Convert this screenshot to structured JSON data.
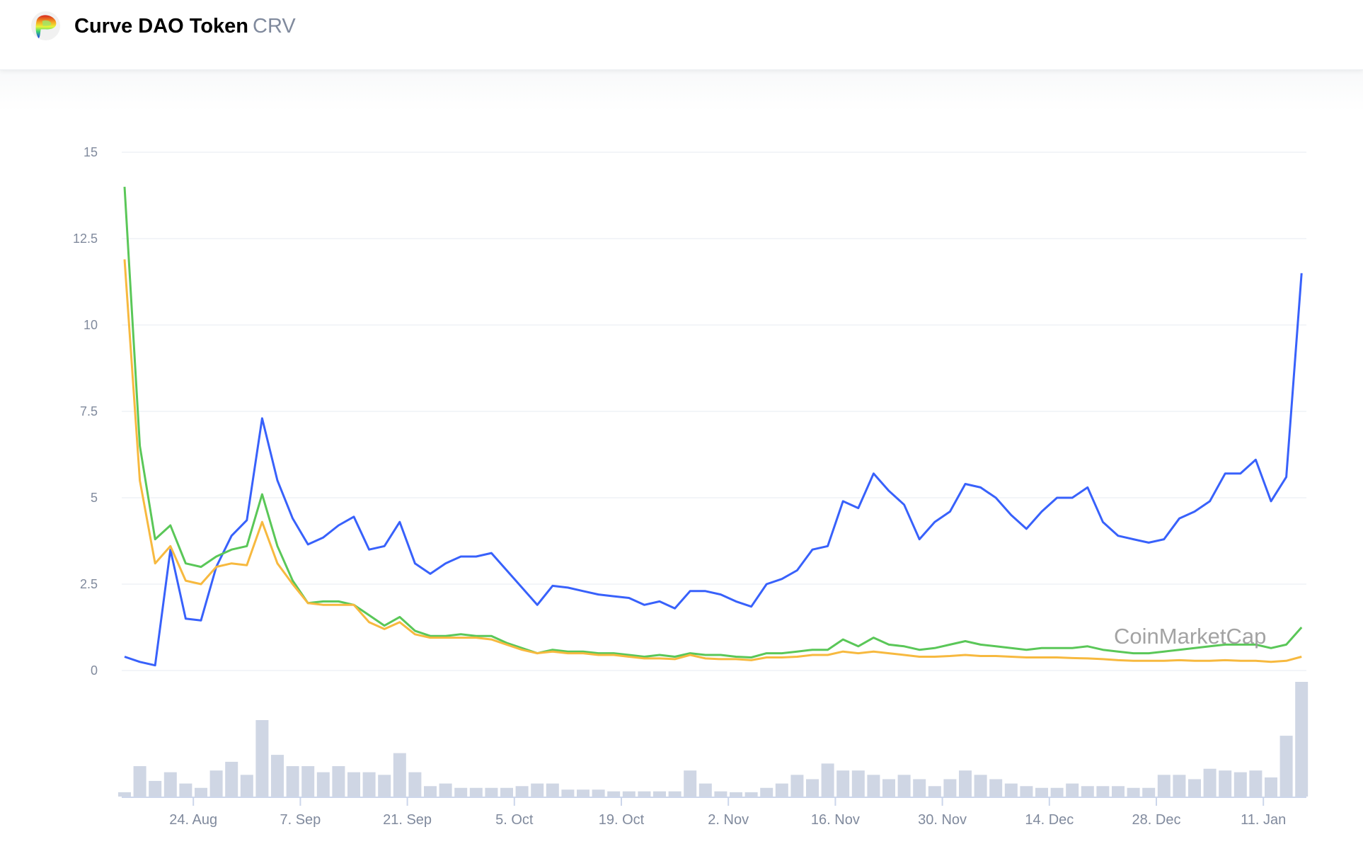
{
  "header": {
    "name": "Curve DAO Token",
    "symbol": "CRV",
    "logo_icon": "curve-rainbow-logo"
  },
  "watermark": "CoinMarketCap",
  "colors": {
    "series_1": "#3861fb",
    "series_2": "#5ac758",
    "series_3": "#f7b93f",
    "volume": "#cfd6e4",
    "grid": "#eff2f5"
  },
  "chart_data": {
    "type": "line",
    "title": "",
    "xlabel": "",
    "ylabel": "",
    "ylim": [
      0,
      15
    ],
    "y_ticks": [
      "0",
      "2.5",
      "5",
      "7.5",
      "10",
      "12.5",
      "15"
    ],
    "y_tick_values": [
      0,
      2.5,
      5,
      7.5,
      10,
      12.5,
      15
    ],
    "x_ticks": [
      {
        "label": "24. Aug",
        "date": "Aug 24"
      },
      {
        "label": "7. Sep",
        "date": "Sep 7"
      },
      {
        "label": "21. Sep",
        "date": "Sep 21"
      },
      {
        "label": "5. Oct",
        "date": "Oct 5"
      },
      {
        "label": "19. Oct",
        "date": "Oct 19"
      },
      {
        "label": "2. Nov",
        "date": "Nov 2"
      },
      {
        "label": "16. Nov",
        "date": "Nov 16"
      },
      {
        "label": "30. Nov",
        "date": "Nov 30"
      },
      {
        "label": "14. Dec",
        "date": "Dec 14"
      },
      {
        "label": "28. Dec",
        "date": "Dec 28"
      },
      {
        "label": "11. Jan",
        "date": "Jan 11"
      }
    ],
    "grid": true,
    "legend": "none",
    "x": [
      "Aug 15",
      "Aug 17",
      "Aug 19",
      "Aug 21",
      "Aug 23",
      "Aug 25",
      "Aug 27",
      "Aug 29",
      "Aug 31",
      "Sep 2",
      "Sep 4",
      "Sep 6",
      "Sep 8",
      "Sep 10",
      "Sep 12",
      "Sep 14",
      "Sep 16",
      "Sep 18",
      "Sep 20",
      "Sep 22",
      "Sep 24",
      "Sep 26",
      "Sep 28",
      "Sep 30",
      "Oct 2",
      "Oct 4",
      "Oct 6",
      "Oct 8",
      "Oct 10",
      "Oct 12",
      "Oct 14",
      "Oct 16",
      "Oct 18",
      "Oct 20",
      "Oct 22",
      "Oct 24",
      "Oct 26",
      "Oct 28",
      "Oct 30",
      "Nov 1",
      "Nov 3",
      "Nov 5",
      "Nov 7",
      "Nov 9",
      "Nov 11",
      "Nov 13",
      "Nov 15",
      "Nov 17",
      "Nov 19",
      "Nov 21",
      "Nov 23",
      "Nov 25",
      "Nov 27",
      "Nov 29",
      "Dec 1",
      "Dec 3",
      "Dec 5",
      "Dec 7",
      "Dec 9",
      "Dec 11",
      "Dec 13",
      "Dec 15",
      "Dec 17",
      "Dec 19",
      "Dec 21",
      "Dec 23",
      "Dec 25",
      "Dec 27",
      "Dec 29",
      "Dec 31",
      "Jan 2",
      "Jan 4",
      "Jan 6",
      "Jan 8",
      "Jan 10",
      "Jan 12",
      "Jan 14",
      "Jan 16"
    ],
    "series": [
      {
        "color": "#3861fb",
        "values": [
          0.4,
          0.25,
          0.15,
          3.5,
          1.5,
          1.45,
          3.0,
          3.9,
          4.35,
          7.3,
          5.5,
          4.4,
          3.65,
          3.85,
          4.2,
          4.45,
          3.5,
          3.6,
          4.3,
          3.1,
          2.8,
          3.1,
          3.3,
          3.3,
          3.4,
          2.9,
          2.4,
          1.9,
          2.45,
          2.4,
          2.3,
          2.2,
          2.15,
          2.1,
          1.9,
          2.0,
          1.8,
          2.3,
          2.3,
          2.2,
          2.0,
          1.85,
          2.5,
          2.65,
          2.9,
          3.5,
          3.6,
          4.9,
          4.7,
          5.7,
          5.2,
          4.8,
          3.8,
          4.3,
          4.6,
          5.4,
          5.3,
          5.0,
          4.5,
          4.1,
          4.6,
          5.0,
          5.0,
          5.3,
          4.3,
          3.9,
          3.8,
          3.7,
          3.8,
          4.4,
          4.6,
          4.9,
          5.7,
          5.7,
          6.1,
          4.9,
          5.6,
          11.5
        ]
      },
      {
        "color": "#5ac758",
        "values": [
          14.0,
          6.5,
          3.8,
          4.2,
          3.1,
          3.0,
          3.3,
          3.5,
          3.6,
          5.1,
          3.6,
          2.6,
          1.95,
          2.0,
          2.0,
          1.9,
          1.6,
          1.3,
          1.55,
          1.15,
          1.0,
          1.0,
          1.05,
          1.0,
          1.0,
          0.8,
          0.65,
          0.5,
          0.6,
          0.55,
          0.55,
          0.5,
          0.5,
          0.45,
          0.4,
          0.45,
          0.4,
          0.5,
          0.45,
          0.45,
          0.4,
          0.38,
          0.5,
          0.5,
          0.55,
          0.6,
          0.6,
          0.9,
          0.7,
          0.95,
          0.75,
          0.7,
          0.6,
          0.65,
          0.75,
          0.85,
          0.75,
          0.7,
          0.65,
          0.6,
          0.65,
          0.65,
          0.65,
          0.7,
          0.6,
          0.55,
          0.5,
          0.5,
          0.55,
          0.6,
          0.65,
          0.7,
          0.75,
          0.75,
          0.75,
          0.65,
          0.75,
          1.25
        ]
      },
      {
        "color": "#f7b93f",
        "values": [
          11.9,
          5.5,
          3.1,
          3.6,
          2.6,
          2.5,
          3.0,
          3.1,
          3.05,
          4.3,
          3.1,
          2.5,
          1.95,
          1.9,
          1.9,
          1.9,
          1.4,
          1.2,
          1.4,
          1.05,
          0.95,
          0.95,
          0.95,
          0.95,
          0.9,
          0.75,
          0.6,
          0.5,
          0.55,
          0.5,
          0.5,
          0.45,
          0.45,
          0.4,
          0.35,
          0.35,
          0.33,
          0.45,
          0.35,
          0.33,
          0.33,
          0.3,
          0.38,
          0.38,
          0.4,
          0.45,
          0.45,
          0.55,
          0.5,
          0.55,
          0.5,
          0.45,
          0.4,
          0.4,
          0.42,
          0.45,
          0.42,
          0.42,
          0.4,
          0.38,
          0.38,
          0.38,
          0.36,
          0.35,
          0.33,
          0.3,
          0.28,
          0.28,
          0.28,
          0.3,
          0.28,
          0.28,
          0.3,
          0.28,
          0.28,
          0.25,
          0.28,
          0.4
        ]
      }
    ],
    "volume": {
      "color": "#cfd6e4",
      "values": [
        5,
        35,
        18,
        28,
        15,
        10,
        30,
        40,
        25,
        88,
        48,
        35,
        35,
        28,
        35,
        28,
        28,
        25,
        50,
        28,
        12,
        15,
        10,
        10,
        10,
        10,
        12,
        15,
        15,
        8,
        8,
        8,
        6,
        6,
        6,
        6,
        6,
        30,
        15,
        6,
        5,
        5,
        10,
        15,
        25,
        20,
        38,
        30,
        30,
        25,
        20,
        25,
        20,
        12,
        20,
        30,
        25,
        20,
        15,
        12,
        10,
        10,
        15,
        12,
        12,
        12,
        10,
        10,
        25,
        25,
        20,
        32,
        30,
        28,
        30,
        22,
        70,
        132
      ]
    }
  }
}
